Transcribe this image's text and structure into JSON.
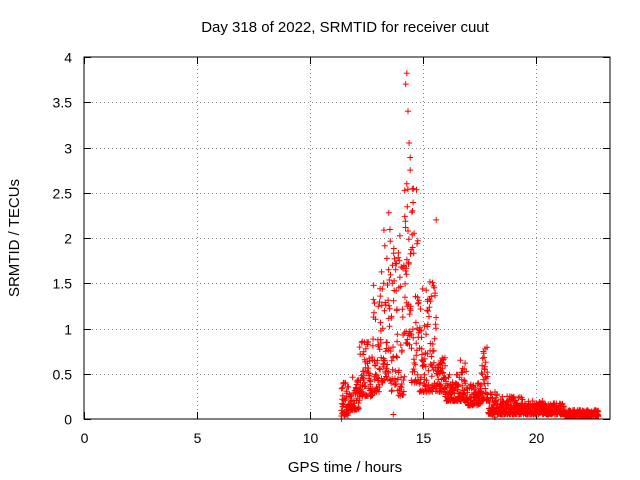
{
  "chart_data": {
    "type": "scatter",
    "title": "Day 318 of 2022, SRMTID for receiver cuut",
    "xlabel": "GPS time / hours",
    "ylabel": "SRMTID / TECUs",
    "xlim": [
      0,
      23.3
    ],
    "ylim": [
      0,
      4
    ],
    "xticks": [
      0,
      5,
      10,
      15,
      20
    ],
    "yticks": [
      0,
      0.5,
      1,
      1.5,
      2,
      2.5,
      3,
      3.5,
      4
    ],
    "xtick_labels": [
      "0",
      "5",
      "10",
      "15",
      "20"
    ],
    "ytick_labels": [
      "0",
      "0.5",
      "1",
      "1.5",
      "2",
      "2.5",
      "3",
      "3.5",
      "4"
    ],
    "grid": true,
    "marker": "+",
    "series": [
      {
        "name": "SRMTID",
        "color": "#ff0000",
        "generated": true,
        "shape": [
          [
            11.4,
            11.7,
            0.04,
            0.4
          ],
          [
            11.7,
            12.2,
            0.1,
            0.5
          ],
          [
            12.2,
            12.8,
            0.25,
            0.9
          ],
          [
            12.8,
            13.1,
            0.3,
            1.6
          ],
          [
            13.1,
            13.6,
            0.4,
            2.1
          ],
          [
            13.6,
            13.9,
            0.3,
            1.9
          ],
          [
            13.9,
            14.2,
            0.25,
            2.1
          ],
          [
            14.2,
            14.5,
            0.8,
            3.0
          ],
          [
            14.5,
            14.8,
            0.4,
            2.6
          ],
          [
            14.8,
            15.1,
            0.3,
            1.5
          ],
          [
            15.1,
            15.6,
            0.3,
            1.6
          ],
          [
            15.6,
            16.0,
            0.3,
            0.7
          ],
          [
            16.0,
            16.6,
            0.2,
            0.5
          ],
          [
            16.6,
            17.0,
            0.2,
            0.65
          ],
          [
            17.0,
            17.6,
            0.15,
            0.4
          ],
          [
            17.6,
            17.9,
            0.2,
            0.8
          ],
          [
            17.9,
            18.5,
            0.05,
            0.3
          ],
          [
            18.5,
            19.5,
            0.05,
            0.25
          ],
          [
            19.5,
            20.5,
            0.05,
            0.2
          ],
          [
            20.5,
            21.3,
            0.05,
            0.18
          ],
          [
            21.3,
            22.8,
            0.03,
            0.1
          ]
        ],
        "count": 1400,
        "highlights": [
          [
            14.3,
            3.82
          ],
          [
            14.25,
            3.7
          ],
          [
            14.35,
            3.4
          ],
          [
            14.4,
            3.05
          ],
          [
            14.45,
            2.75
          ],
          [
            14.3,
            2.6
          ],
          [
            13.5,
            2.28
          ],
          [
            14.55,
            2.3
          ],
          [
            15.6,
            2.2
          ],
          [
            11.4,
            0.0
          ],
          [
            13.7,
            0.05
          ],
          [
            18.2,
            0.02
          ]
        ]
      }
    ]
  }
}
